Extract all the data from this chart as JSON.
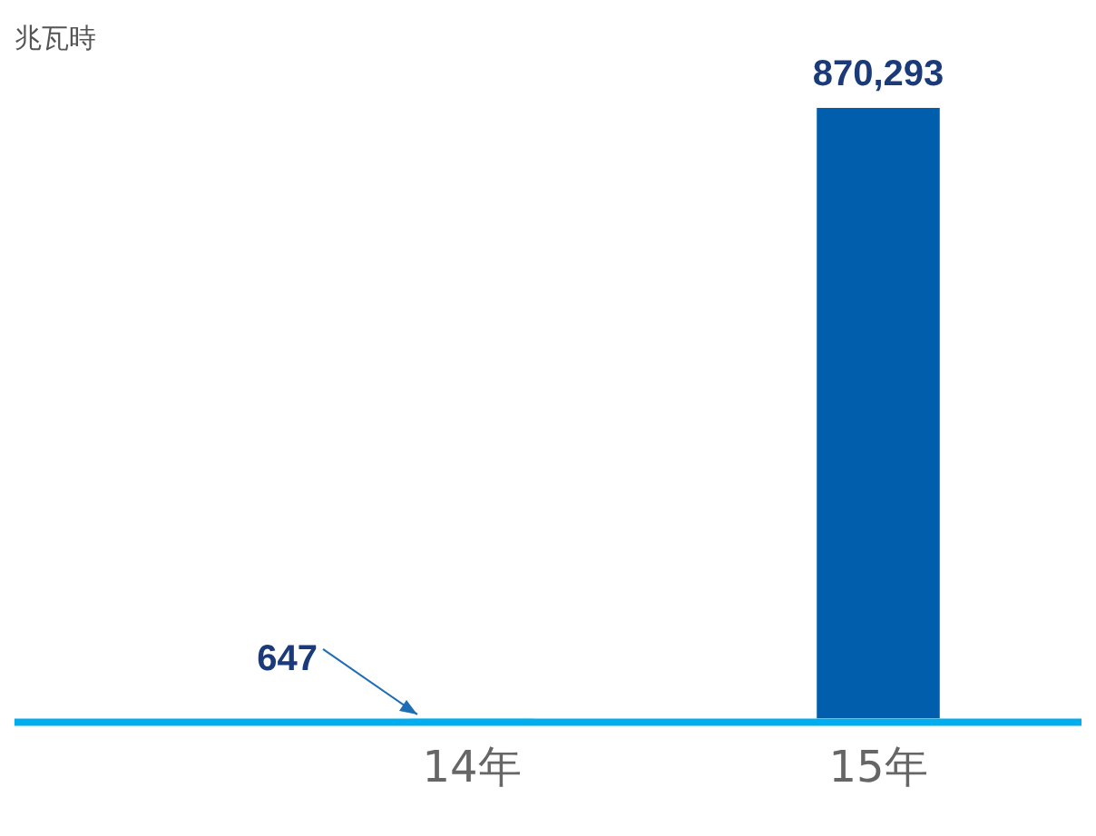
{
  "chart_data": {
    "type": "bar",
    "ylabel": "兆瓦時",
    "categories": [
      "14年",
      "15年"
    ],
    "values": [
      647,
      870293
    ],
    "colors": [
      "#29b6e8",
      "#005eac"
    ],
    "value_labels": [
      "647",
      "870,293"
    ],
    "grid": false,
    "legend": false
  }
}
